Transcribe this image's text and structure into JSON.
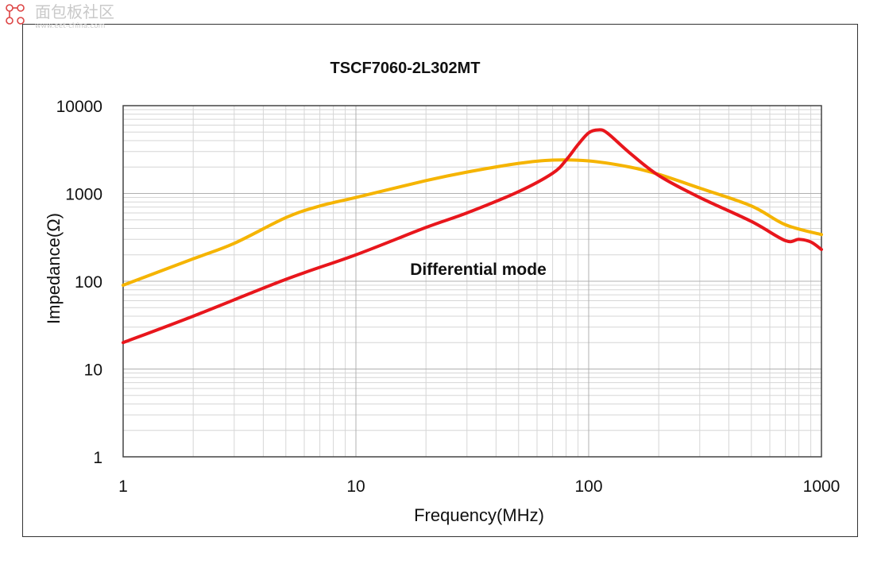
{
  "chart_data": {
    "type": "line",
    "title": "TSCF7060-2L302MT",
    "xlabel": "Frequency(MHz)",
    "ylabel": "Impedance(Ω)",
    "xscale": "log",
    "yscale": "log",
    "xlim": [
      1,
      1000
    ],
    "ylim": [
      1,
      10000
    ],
    "x_ticks": [
      "1",
      "10",
      "100",
      "1000"
    ],
    "y_ticks": [
      "1",
      "10",
      "100",
      "1000",
      "10000"
    ],
    "grid": true,
    "annotation": "Differential mode",
    "series": [
      {
        "color": "#f5b400",
        "x": [
          1,
          2,
          3,
          5,
          7,
          10,
          20,
          30,
          50,
          70,
          100,
          150,
          200,
          300,
          500,
          700,
          1000
        ],
        "y": [
          90,
          180,
          270,
          530,
          720,
          900,
          1400,
          1750,
          2200,
          2400,
          2350,
          2000,
          1650,
          1150,
          720,
          440,
          340
        ]
      },
      {
        "color": "#e8161c",
        "x": [
          1,
          2,
          5,
          10,
          20,
          30,
          50,
          70,
          80,
          90,
          100,
          110,
          120,
          150,
          200,
          300,
          500,
          700,
          800,
          900,
          1000
        ],
        "y": [
          20,
          40,
          105,
          200,
          410,
          600,
          1050,
          1700,
          2400,
          3600,
          4900,
          5300,
          4900,
          2900,
          1600,
          900,
          480,
          290,
          300,
          280,
          230
        ]
      }
    ]
  },
  "watermark": {
    "text": "面包板社区",
    "subtext": "www.eet-china.com"
  }
}
